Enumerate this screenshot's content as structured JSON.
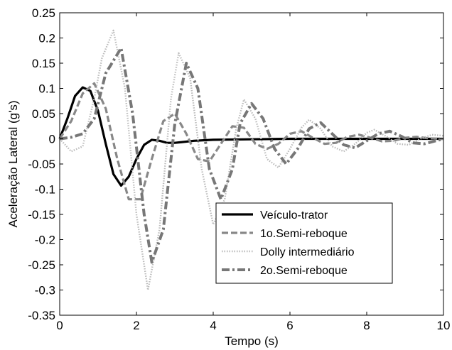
{
  "chart_data": {
    "type": "line",
    "xlabel": "Tempo (s)",
    "ylabel": "Aceleração Lateral (g's)",
    "xlim": [
      0,
      10
    ],
    "ylim": [
      -0.35,
      0.25
    ],
    "xticks": [
      0,
      2,
      4,
      6,
      8,
      10
    ],
    "xtick_labels": [
      "0",
      "2",
      "4",
      "6",
      "8",
      "10"
    ],
    "yticks": [
      0.25,
      0.2,
      0.15,
      0.1,
      0.05,
      0,
      -0.05,
      -0.1,
      -0.15,
      -0.2,
      -0.25,
      -0.3,
      -0.35
    ],
    "ytick_labels": [
      "0.25",
      "0.2",
      "0.15",
      "0.1",
      "0.05",
      "0",
      "-0.05",
      "-0.1",
      "-0.15",
      "-0.2",
      "-0.25",
      "-0.3",
      "-0.35"
    ],
    "grid": false,
    "legend_position": "lower-right",
    "series": [
      {
        "name": "Veículo-trator",
        "style": "solid",
        "color": "#000000",
        "x": [
          0,
          0.2,
          0.4,
          0.6,
          0.8,
          1.0,
          1.2,
          1.4,
          1.6,
          1.8,
          2.0,
          2.2,
          2.4,
          2.6,
          2.8,
          3.0,
          3.5,
          4.0,
          5.0,
          6.0,
          7.0,
          8.0,
          9.0,
          10.0
        ],
        "y": [
          0,
          0.04,
          0.085,
          0.102,
          0.095,
          0.055,
          -0.01,
          -0.07,
          -0.093,
          -0.075,
          -0.04,
          -0.012,
          -0.002,
          -0.004,
          -0.008,
          -0.008,
          -0.004,
          -0.002,
          -0.001,
          0,
          0,
          0,
          0,
          0
        ]
      },
      {
        "name": "1o.Semi-reboque",
        "style": "dashed",
        "color": "#888888",
        "x": [
          0,
          0.3,
          0.6,
          0.9,
          1.2,
          1.5,
          1.8,
          2.1,
          2.4,
          2.7,
          3.0,
          3.3,
          3.6,
          3.9,
          4.2,
          4.5,
          4.8,
          5.1,
          5.4,
          5.7,
          6.0,
          6.3,
          6.6,
          6.9,
          7.2,
          7.5,
          7.8,
          8.1,
          8.4,
          8.7,
          9.0,
          9.3,
          9.6,
          10.0
        ],
        "y": [
          0,
          0.035,
          0.09,
          0.11,
          0.06,
          -0.04,
          -0.12,
          -0.12,
          -0.04,
          0.035,
          0.05,
          0.01,
          -0.04,
          -0.045,
          -0.01,
          0.025,
          0.022,
          -0.01,
          -0.02,
          -0.01,
          0.01,
          0.015,
          0.002,
          -0.01,
          -0.008,
          0.004,
          0.008,
          0.002,
          -0.005,
          -0.004,
          0.002,
          0.004,
          0.001,
          0
        ]
      },
      {
        "name": "Dolly intermediário",
        "style": "dotted",
        "color": "#bbbbbb",
        "x": [
          0,
          0.3,
          0.6,
          0.9,
          1.1,
          1.4,
          1.7,
          2.0,
          2.3,
          2.6,
          2.9,
          3.1,
          3.4,
          3.7,
          4.0,
          4.3,
          4.6,
          4.8,
          5.1,
          5.4,
          5.7,
          6.0,
          6.3,
          6.5,
          6.8,
          7.1,
          7.4,
          7.7,
          8.0,
          8.2,
          8.5,
          8.8,
          9.1,
          9.4,
          9.7,
          10.0
        ],
        "y": [
          0,
          -0.025,
          -0.015,
          0.08,
          0.16,
          0.215,
          0.1,
          -0.15,
          -0.3,
          -0.18,
          0.08,
          0.17,
          0.12,
          -0.06,
          -0.17,
          -0.12,
          0.02,
          0.078,
          0.04,
          -0.04,
          -0.057,
          -0.02,
          0.022,
          0.038,
          0.02,
          -0.015,
          -0.025,
          -0.01,
          0.012,
          0.018,
          0.005,
          -0.01,
          -0.012,
          0.0,
          0.008,
          0.006
        ]
      },
      {
        "name": "2o.Semi-reboque",
        "style": "dashdot",
        "color": "#777777",
        "x": [
          0,
          0.3,
          0.6,
          0.9,
          1.2,
          1.6,
          1.9,
          2.2,
          2.4,
          2.7,
          3.0,
          3.3,
          3.6,
          3.9,
          4.2,
          4.5,
          4.7,
          5.0,
          5.3,
          5.6,
          5.9,
          6.2,
          6.5,
          6.8,
          7.1,
          7.4,
          7.7,
          8.0,
          8.3,
          8.6,
          8.9,
          9.2,
          9.5,
          10.0
        ],
        "y": [
          0,
          0.003,
          0.01,
          0.04,
          0.13,
          0.18,
          0.05,
          -0.15,
          -0.245,
          -0.18,
          0.03,
          0.15,
          0.1,
          -0.06,
          -0.12,
          -0.06,
          0.03,
          0.07,
          0.04,
          -0.02,
          -0.05,
          -0.02,
          0.02,
          0.032,
          0.01,
          -0.012,
          -0.018,
          -0.004,
          0.01,
          0.015,
          0.005,
          -0.008,
          -0.01,
          0.0
        ]
      }
    ]
  }
}
